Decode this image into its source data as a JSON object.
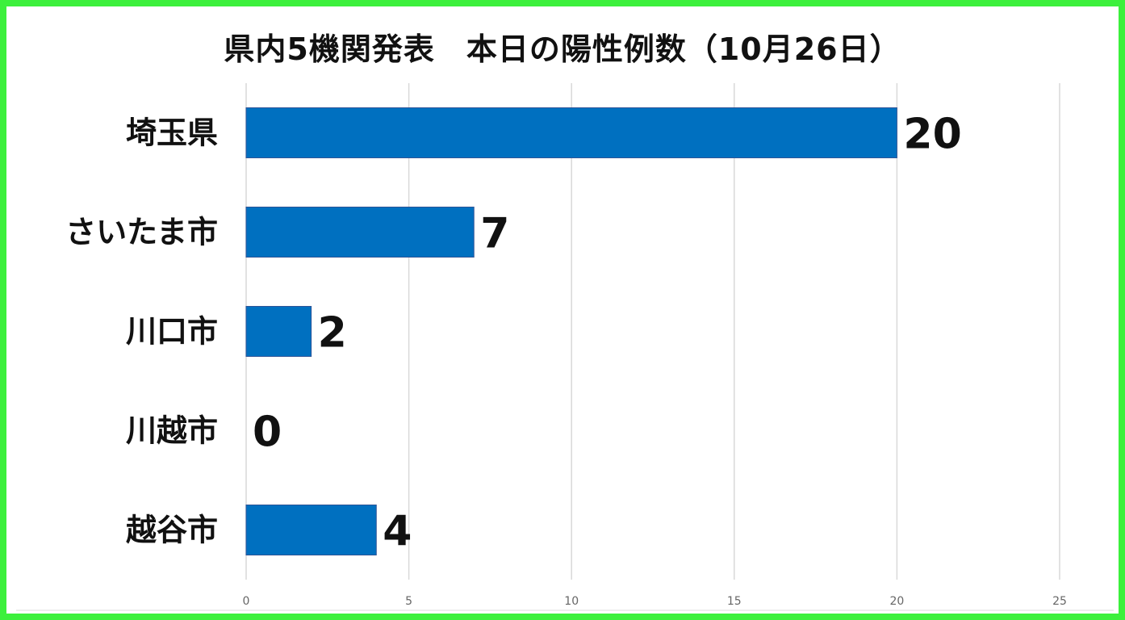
{
  "chart_data": {
    "type": "bar",
    "orientation": "horizontal",
    "title": "県内5機関発表　本日の陽性例数（10月26日）",
    "categories": [
      "埼玉県",
      "さいたま市",
      "川口市",
      "川越市",
      "越谷市"
    ],
    "values": [
      20,
      7,
      2,
      0,
      4
    ],
    "data_labels": [
      "20",
      "7",
      "2",
      "0",
      "4"
    ],
    "xlim": [
      0,
      25
    ],
    "xticks": [
      0,
      5,
      10,
      15,
      20,
      25
    ],
    "xtick_labels": [
      "0",
      "5",
      "10",
      "15",
      "20",
      "25"
    ],
    "xlabel": "",
    "ylabel": "",
    "grid": true,
    "bar_color": "#0070c0",
    "frame_color": "#3cf03c"
  }
}
